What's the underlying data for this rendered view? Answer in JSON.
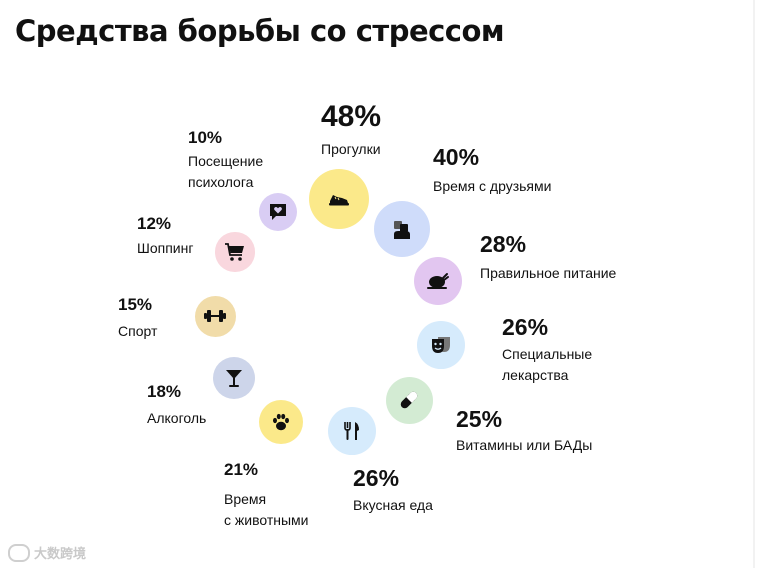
{
  "title": "Средства борьбы со стрессом",
  "watermark": "大数跨境",
  "chart_data": {
    "type": "bubble-ring",
    "title": "Средства борьбы со стрессом",
    "unit": "%",
    "items": [
      {
        "value": 48,
        "value_label": "48%",
        "label": "Прогулки",
        "icon": "shoe-icon",
        "color": "#fbe98a"
      },
      {
        "value": 40,
        "value_label": "40%",
        "label": "Время с друзьями",
        "icon": "friends-icon",
        "color": "#cfdcfa"
      },
      {
        "value": 28,
        "value_label": "28%",
        "label": "Правильное питание",
        "icon": "roast-chicken-icon",
        "color": "#e2c6f0"
      },
      {
        "value": 26,
        "value_label": "26%",
        "label": "Специальные\nлекарства",
        "icon": "mask-icon",
        "color": "#d6ebfc"
      },
      {
        "value": 25,
        "value_label": "25%",
        "label": "Витамины или БАДы",
        "icon": "pill-icon",
        "color": "#d3ebd3"
      },
      {
        "value": 26,
        "value_label": "26%",
        "label": "Вкусная еда",
        "icon": "fork-knife-icon",
        "color": "#d6ebfc"
      },
      {
        "value": 21,
        "value_label": "21%",
        "label": "Время\nс животными",
        "icon": "paw-icon",
        "color": "#fbe98a"
      },
      {
        "value": 18,
        "value_label": "18%",
        "label": "Алкоголь",
        "icon": "cocktail-glass-icon",
        "color": "#cdd5ea"
      },
      {
        "value": 15,
        "value_label": "15%",
        "label": "Спорт",
        "icon": "dumbbell-icon",
        "color": "#f1dca9"
      },
      {
        "value": 12,
        "value_label": "12%",
        "label": "Шоппинг",
        "icon": "cart-icon",
        "color": "#f9d7de"
      },
      {
        "value": 10,
        "value_label": "10%",
        "label": "Посещение\nпсихолога",
        "icon": "heart-chat-icon",
        "color": "#d9cdf4"
      }
    ]
  }
}
